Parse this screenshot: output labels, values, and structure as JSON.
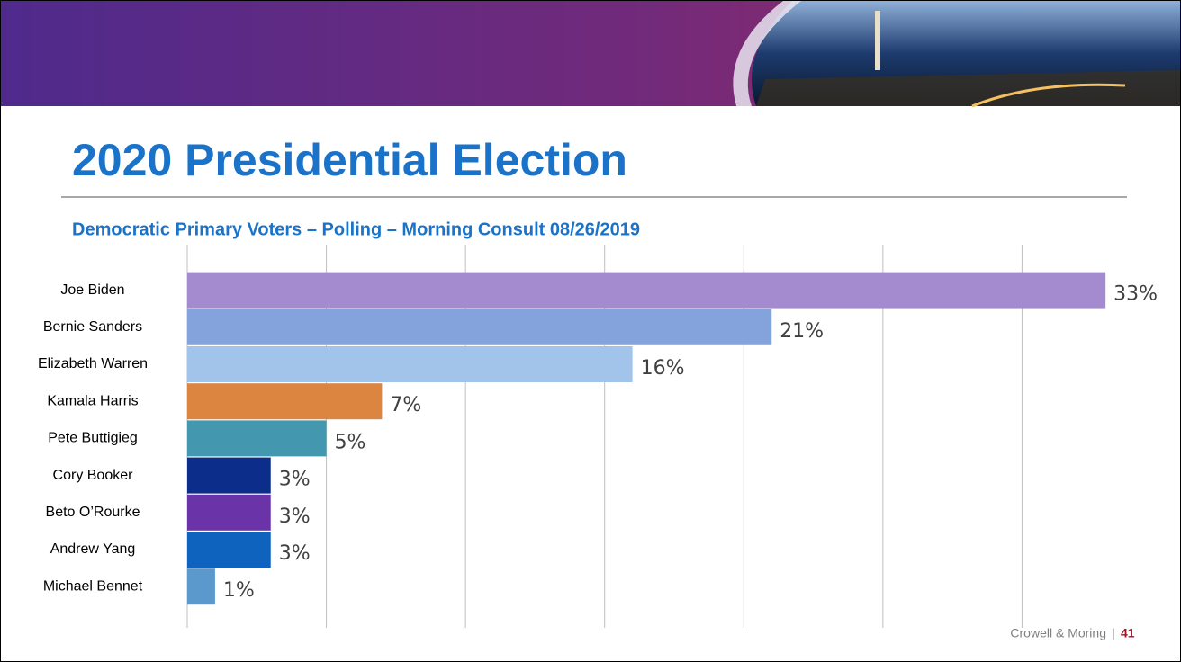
{
  "slide": {
    "title": "2020 Presidential Election"
  },
  "chart_data": {
    "type": "bar",
    "orientation": "horizontal",
    "title": "Democratic Primary Voters – Polling – Morning Consult 08/26/2019",
    "categories": [
      "Joe Biden",
      "Bernie Sanders",
      "Elizabeth Warren",
      "Kamala Harris",
      "Pete Buttigieg",
      "Cory Booker",
      "Beto O’Rourke",
      "Andrew Yang",
      "Michael Bennet"
    ],
    "values": [
      33,
      21,
      16,
      7,
      5,
      3,
      3,
      3,
      1
    ],
    "value_labels": [
      "33%",
      "21%",
      "16%",
      "7%",
      "5%",
      "3%",
      "3%",
      "3%",
      "1%"
    ],
    "colors": [
      "#a48bd0",
      "#84a3dc",
      "#a2c4ea",
      "#dc8540",
      "#4398b0",
      "#0c2d8a",
      "#6a34a8",
      "#0e63be",
      "#5b98cc"
    ],
    "xlim": [
      0,
      35
    ],
    "xticks": [
      0,
      5,
      10,
      15,
      20,
      25,
      30
    ],
    "grid": true
  },
  "footer": {
    "company": "Crowell & Moring",
    "separator": "|",
    "page": "41"
  }
}
